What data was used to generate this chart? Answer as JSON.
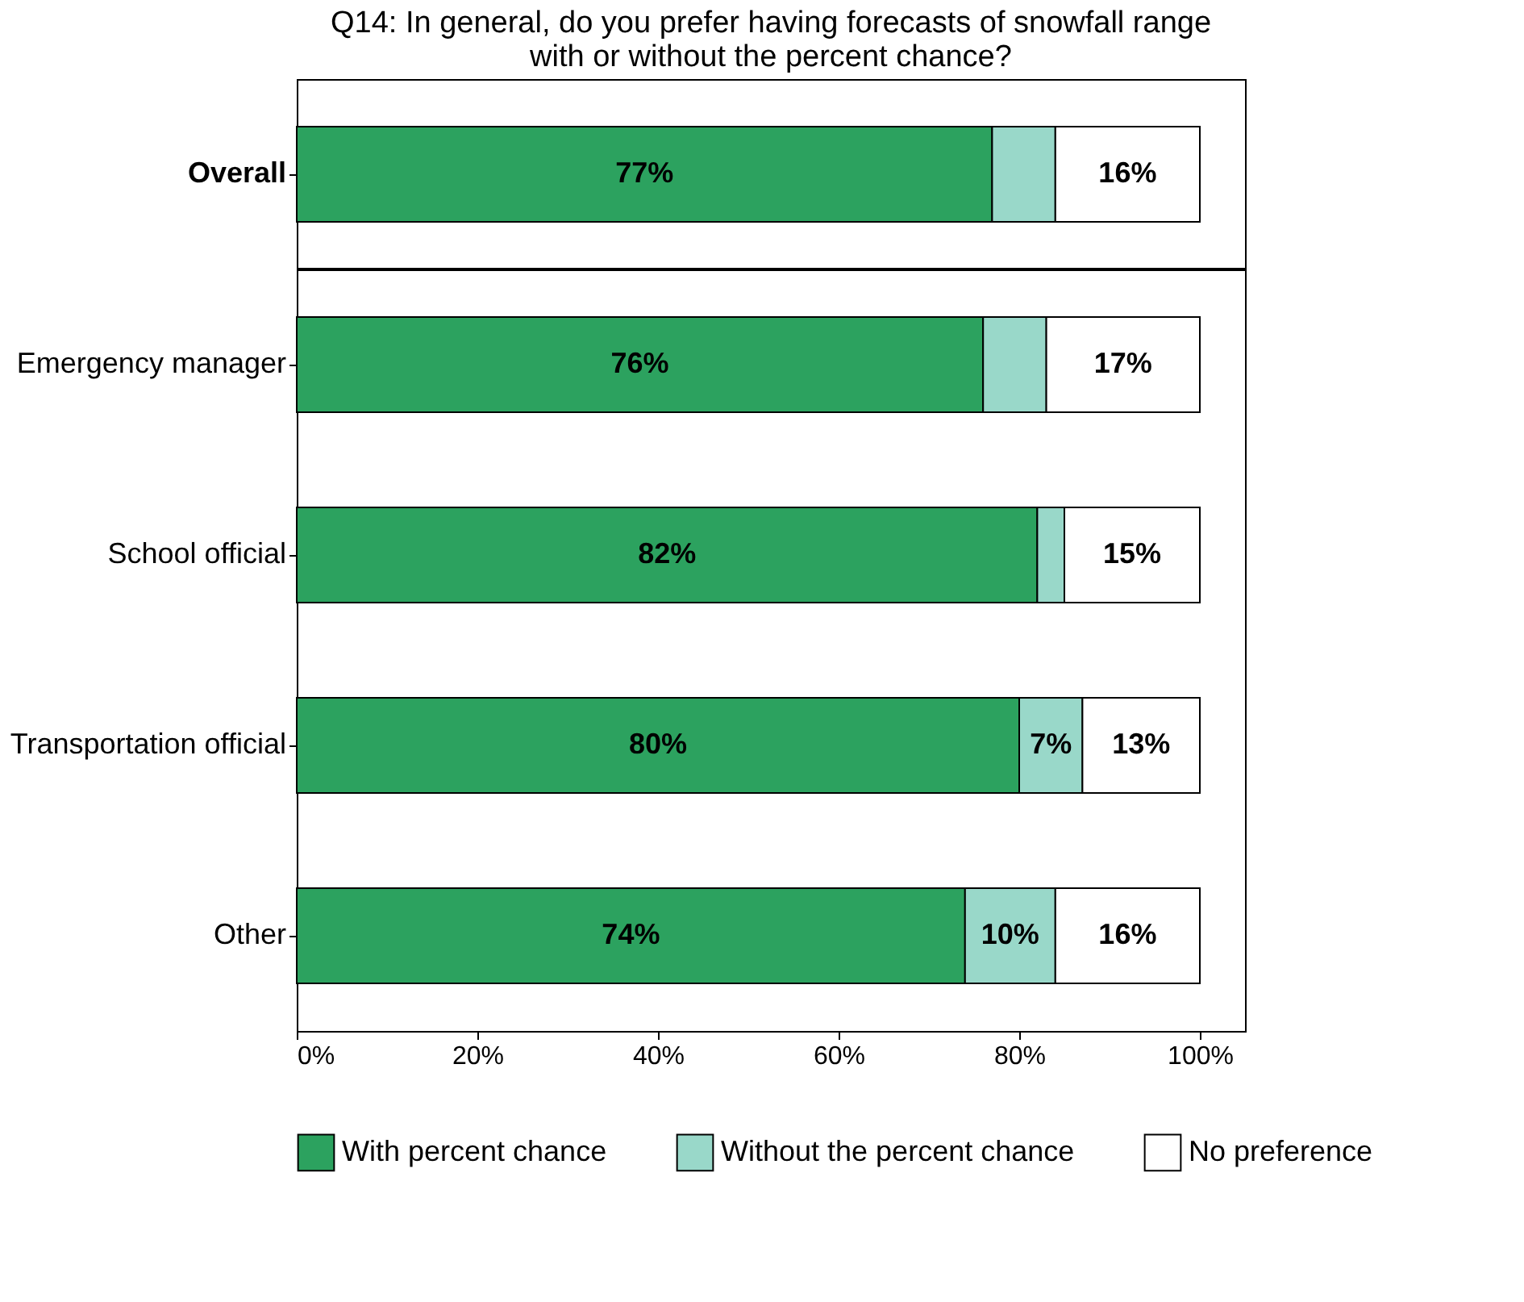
{
  "chart_data": {
    "type": "bar",
    "orientation": "horizontal",
    "stacked": true,
    "title": "Q14: In general, do you prefer having forecasts of snowfall range with or without the percent chance?",
    "categories": [
      "Overall",
      "Emergency manager",
      "School official",
      "Transportation official",
      "Other"
    ],
    "series": [
      {
        "name": "With percent chance",
        "color": "#2ca25f",
        "values": [
          77,
          76,
          82,
          80,
          74
        ],
        "value_labels": [
          "77%",
          "76%",
          "82%",
          "80%",
          "74%"
        ]
      },
      {
        "name": "Without the percent chance",
        "color": "#99d8c9",
        "values": [
          7,
          7,
          3,
          7,
          10
        ],
        "value_labels": [
          null,
          null,
          null,
          "7%",
          "10%"
        ]
      },
      {
        "name": "No preference",
        "color": "#ffffff",
        "values": [
          16,
          17,
          15,
          13,
          16
        ],
        "value_labels": [
          "16%",
          "17%",
          "15%",
          "13%",
          "16%"
        ]
      }
    ],
    "xlim": [
      0,
      105
    ],
    "xticks": [
      {
        "value": 0,
        "label": "0%"
      },
      {
        "value": 20,
        "label": "20%"
      },
      {
        "value": 40,
        "label": "40%"
      },
      {
        "value": 60,
        "label": "60%"
      },
      {
        "value": 80,
        "label": "80%"
      },
      {
        "value": 100,
        "label": "100%"
      }
    ],
    "grid": false,
    "legend": "bottom"
  }
}
